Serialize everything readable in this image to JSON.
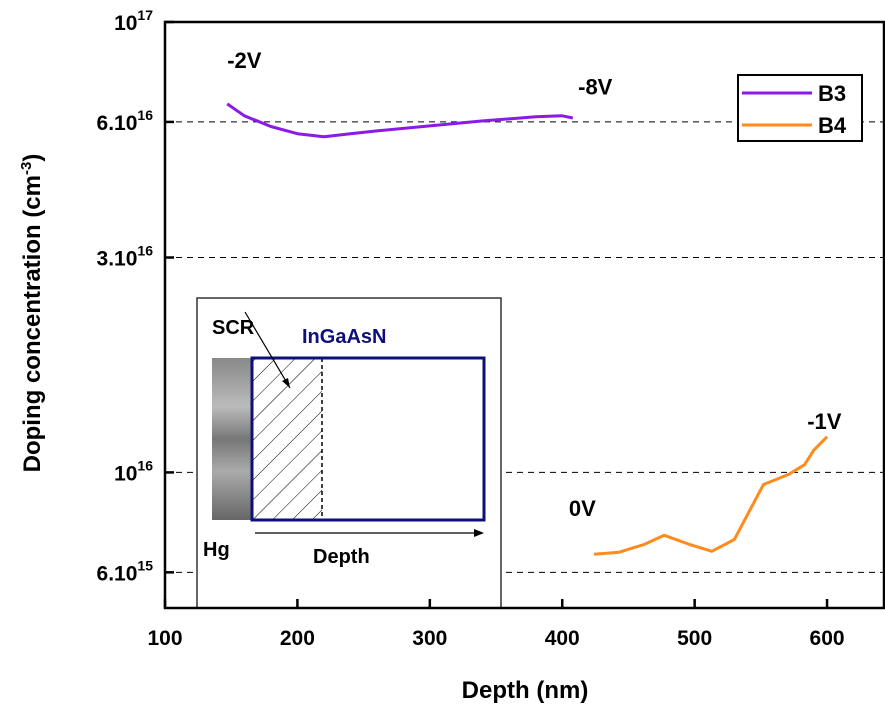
{
  "chart_data": {
    "type": "line",
    "x_label": "Depth (nm)",
    "y_label": "Doping concentration (cm",
    "y_label_sup": "-3",
    "y_label_end": ")",
    "y_log": true,
    "xlim": [
      100,
      643
    ],
    "ylim": [
      5000000000000000.0,
      1e+17
    ],
    "xticks": [
      100,
      200,
      300,
      400,
      500,
      600
    ],
    "yticks": [
      {
        "value": 6000000000000000.0,
        "label": "6.10",
        "sup": "15"
      },
      {
        "value": 1e+16,
        "label": "10",
        "sup": "16"
      },
      {
        "value": 3e+16,
        "label": "3.10",
        "sup": "16"
      },
      {
        "value": 6e+16,
        "label": "6.10",
        "sup": "16"
      },
      {
        "value": 1e+17,
        "label": "10",
        "sup": "17"
      }
    ],
    "grid_values": [
      6000000000000000.0,
      1e+16,
      3e+16,
      6e+16
    ],
    "legend": "upper right",
    "series": [
      {
        "name": "B3",
        "color": "#8b1ae6",
        "x": [
          147,
          160,
          180,
          200,
          220,
          240,
          260,
          300,
          340,
          380,
          400,
          408
        ],
        "values": [
          6.58e+16,
          6.19e+16,
          5.86e+16,
          5.65e+16,
          5.56e+16,
          5.65e+16,
          5.73e+16,
          5.88e+16,
          6.03e+16,
          6.16e+16,
          6.19e+16,
          6.12e+16
        ]
      },
      {
        "name": "B4",
        "color": "#ff8a1e",
        "x": [
          424,
          443,
          462,
          477,
          496,
          513,
          530,
          540,
          552,
          571,
          583,
          590,
          600
        ],
        "values": [
          6580000000000000.0,
          6650000000000000.0,
          6920000000000000.0,
          7250000000000000.0,
          6920000000000000.0,
          6680000000000000.0,
          7100000000000000.0,
          8070000000000000.0,
          9400000000000000.0,
          9900000000000000.0,
          1.04e+16,
          1.12e+16,
          1.2e+16
        ]
      }
    ],
    "annotations": [
      {
        "text": "-2V",
        "x": 147,
        "y": 7.9e+16
      },
      {
        "text": "-8V",
        "x": 412,
        "y": 6.9e+16
      },
      {
        "text": "0V",
        "x": 405,
        "y": 8000000000000000.0
      },
      {
        "text": "-1V",
        "x": 585,
        "y": 1.25e+16
      }
    ]
  },
  "inset": {
    "scr": "SCR",
    "material": "InGaAsN",
    "contact": "Hg",
    "axis": "Depth"
  }
}
